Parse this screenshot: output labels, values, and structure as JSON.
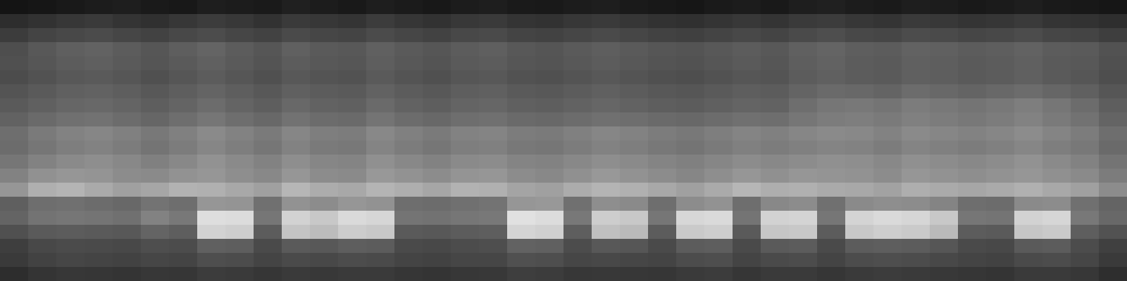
{
  "chart_data": {
    "type": "heatmap",
    "tick_labels": false,
    "zlim": [
      0,
      255
    ],
    "cells": [
      [
        20,
        22,
        25,
        28,
        30,
        26,
        24,
        30,
        28,
        26,
        32,
        28,
        25,
        30,
        27,
        24,
        28,
        30,
        26,
        25,
        28,
        30,
        26,
        24,
        22,
        26,
        28,
        25,
        30,
        32,
        28,
        26,
        30,
        28,
        25,
        27,
        30,
        26,
        24,
        22
      ],
      [
        45,
        50,
        55,
        58,
        52,
        48,
        55,
        60,
        56,
        50,
        58,
        55,
        52,
        60,
        54,
        50,
        56,
        58,
        52,
        50,
        55,
        58,
        54,
        50,
        48,
        52,
        56,
        52,
        58,
        60,
        55,
        52,
        58,
        56,
        52,
        54,
        58,
        52,
        50,
        46
      ],
      [
        60,
        68,
        72,
        75,
        70,
        66,
        72,
        76,
        70,
        66,
        74,
        70,
        68,
        75,
        70,
        66,
        72,
        74,
        68,
        66,
        70,
        74,
        70,
        66,
        64,
        68,
        72,
        68,
        74,
        78,
        72,
        70,
        76,
        74,
        70,
        72,
        76,
        70,
        68,
        62
      ],
      [
        78,
        88,
        95,
        98,
        92,
        86,
        94,
        100,
        92,
        86,
        96,
        90,
        88,
        96,
        90,
        86,
        92,
        95,
        88,
        85,
        90,
        94,
        90,
        86,
        84,
        88,
        92,
        88,
        96,
        100,
        94,
        92,
        98,
        96,
        92,
        94,
        98,
        92,
        90,
        82
      ],
      [
        80,
        86,
        92,
        95,
        90,
        85,
        90,
        96,
        90,
        84,
        92,
        88,
        86,
        94,
        88,
        84,
        90,
        92,
        86,
        84,
        88,
        92,
        88,
        84,
        82,
        86,
        90,
        86,
        94,
        98,
        92,
        90,
        96,
        94,
        90,
        92,
        96,
        90,
        88,
        80
      ],
      [
        76,
        82,
        88,
        90,
        86,
        80,
        86,
        92,
        86,
        80,
        88,
        84,
        82,
        90,
        84,
        80,
        86,
        88,
        82,
        80,
        84,
        88,
        84,
        80,
        78,
        82,
        86,
        84,
        92,
        96,
        92,
        90,
        96,
        94,
        90,
        92,
        96,
        90,
        86,
        78
      ],
      [
        84,
        90,
        96,
        98,
        94,
        88,
        94,
        100,
        94,
        88,
        96,
        92,
        90,
        98,
        92,
        88,
        94,
        96,
        90,
        88,
        92,
        96,
        92,
        88,
        86,
        90,
        94,
        92,
        100,
        106,
        104,
        100,
        108,
        104,
        100,
        104,
        108,
        102,
        96,
        86
      ],
      [
        90,
        96,
        102,
        104,
        100,
        94,
        100,
        108,
        100,
        94,
        104,
        98,
        96,
        106,
        98,
        94,
        100,
        102,
        96,
        94,
        98,
        102,
        98,
        94,
        92,
        96,
        100,
        98,
        110,
        118,
        120,
        116,
        124,
        120,
        116,
        120,
        126,
        118,
        108,
        94
      ],
      [
        98,
        106,
        112,
        114,
        108,
        102,
        110,
        118,
        110,
        104,
        114,
        108,
        106,
        116,
        108,
        104,
        110,
        112,
        106,
        104,
        108,
        112,
        110,
        106,
        104,
        108,
        112,
        110,
        118,
        124,
        126,
        122,
        128,
        124,
        120,
        124,
        130,
        122,
        114,
        100
      ],
      [
        110,
        122,
        130,
        134,
        128,
        120,
        128,
        138,
        130,
        122,
        134,
        126,
        124,
        136,
        128,
        122,
        130,
        132,
        124,
        122,
        128,
        134,
        130,
        124,
        120,
        126,
        132,
        128,
        134,
        138,
        136,
        130,
        138,
        134,
        130,
        134,
        140,
        132,
        124,
        110
      ],
      [
        108,
        118,
        126,
        130,
        124,
        116,
        124,
        134,
        126,
        118,
        130,
        122,
        120,
        132,
        124,
        118,
        126,
        128,
        120,
        118,
        124,
        130,
        126,
        120,
        116,
        122,
        128,
        124,
        128,
        132,
        130,
        124,
        132,
        128,
        124,
        128,
        134,
        126,
        120,
        106
      ],
      [
        118,
        130,
        138,
        142,
        136,
        128,
        136,
        146,
        138,
        130,
        142,
        134,
        132,
        144,
        136,
        130,
        138,
        140,
        132,
        130,
        136,
        142,
        138,
        132,
        128,
        134,
        140,
        136,
        140,
        144,
        142,
        136,
        144,
        140,
        136,
        140,
        146,
        138,
        130,
        116
      ],
      [
        130,
        145,
        150,
        148,
        140,
        138,
        146,
        150,
        142,
        136,
        150,
        140,
        138,
        152,
        146,
        140,
        148,
        150,
        140,
        136,
        144,
        152,
        146,
        140,
        134,
        142,
        150,
        144,
        150,
        148,
        146,
        140,
        150,
        146,
        142,
        146,
        150,
        144,
        138,
        124
      ],
      [
        150,
        175,
        180,
        170,
        160,
        166,
        178,
        176,
        168,
        160,
        182,
        172,
        168,
        180,
        174,
        166,
        178,
        176,
        164,
        160,
        172,
        180,
        176,
        168,
        160,
        170,
        182,
        174,
        176,
        170,
        168,
        162,
        174,
        170,
        166,
        170,
        176,
        168,
        160,
        140
      ],
      [
        95,
        110,
        112,
        108,
        104,
        115,
        110,
        150,
        148,
        112,
        146,
        140,
        150,
        146,
        110,
        108,
        112,
        115,
        150,
        152,
        112,
        142,
        138,
        110,
        140,
        146,
        110,
        136,
        140,
        112,
        138,
        142,
        140,
        132,
        110,
        108,
        138,
        140,
        112,
        100
      ],
      [
        100,
        115,
        118,
        116,
        112,
        130,
        120,
        222,
        220,
        118,
        210,
        200,
        218,
        214,
        116,
        114,
        118,
        120,
        225,
        220,
        120,
        205,
        200,
        118,
        215,
        218,
        116,
        210,
        212,
        118,
        212,
        218,
        214,
        200,
        118,
        116,
        210,
        214,
        120,
        104
      ],
      [
        80,
        90,
        92,
        90,
        88,
        100,
        94,
        210,
        206,
        92,
        196,
        188,
        204,
        200,
        90,
        88,
        92,
        94,
        212,
        208,
        94,
        192,
        186,
        92,
        202,
        206,
        90,
        198,
        200,
        92,
        200,
        206,
        202,
        186,
        92,
        90,
        198,
        202,
        94,
        82
      ],
      [
        62,
        72,
        75,
        74,
        72,
        78,
        76,
        96,
        94,
        74,
        90,
        88,
        94,
        92,
        74,
        72,
        76,
        78,
        98,
        96,
        76,
        88,
        86,
        74,
        92,
        94,
        74,
        90,
        92,
        74,
        92,
        94,
        92,
        86,
        74,
        72,
        90,
        92,
        76,
        64
      ],
      [
        58,
        66,
        70,
        68,
        66,
        70,
        68,
        78,
        76,
        68,
        74,
        72,
        76,
        74,
        68,
        66,
        70,
        70,
        80,
        78,
        70,
        72,
        70,
        68,
        76,
        78,
        68,
        74,
        76,
        68,
        76,
        78,
        76,
        72,
        68,
        66,
        74,
        76,
        70,
        58
      ],
      [
        45,
        52,
        55,
        54,
        52,
        55,
        54,
        60,
        58,
        54,
        58,
        56,
        58,
        58,
        54,
        52,
        55,
        56,
        62,
        60,
        55,
        56,
        55,
        54,
        58,
        60,
        54,
        58,
        58,
        54,
        58,
        60,
        58,
        56,
        54,
        52,
        58,
        58,
        55,
        46
      ]
    ]
  }
}
